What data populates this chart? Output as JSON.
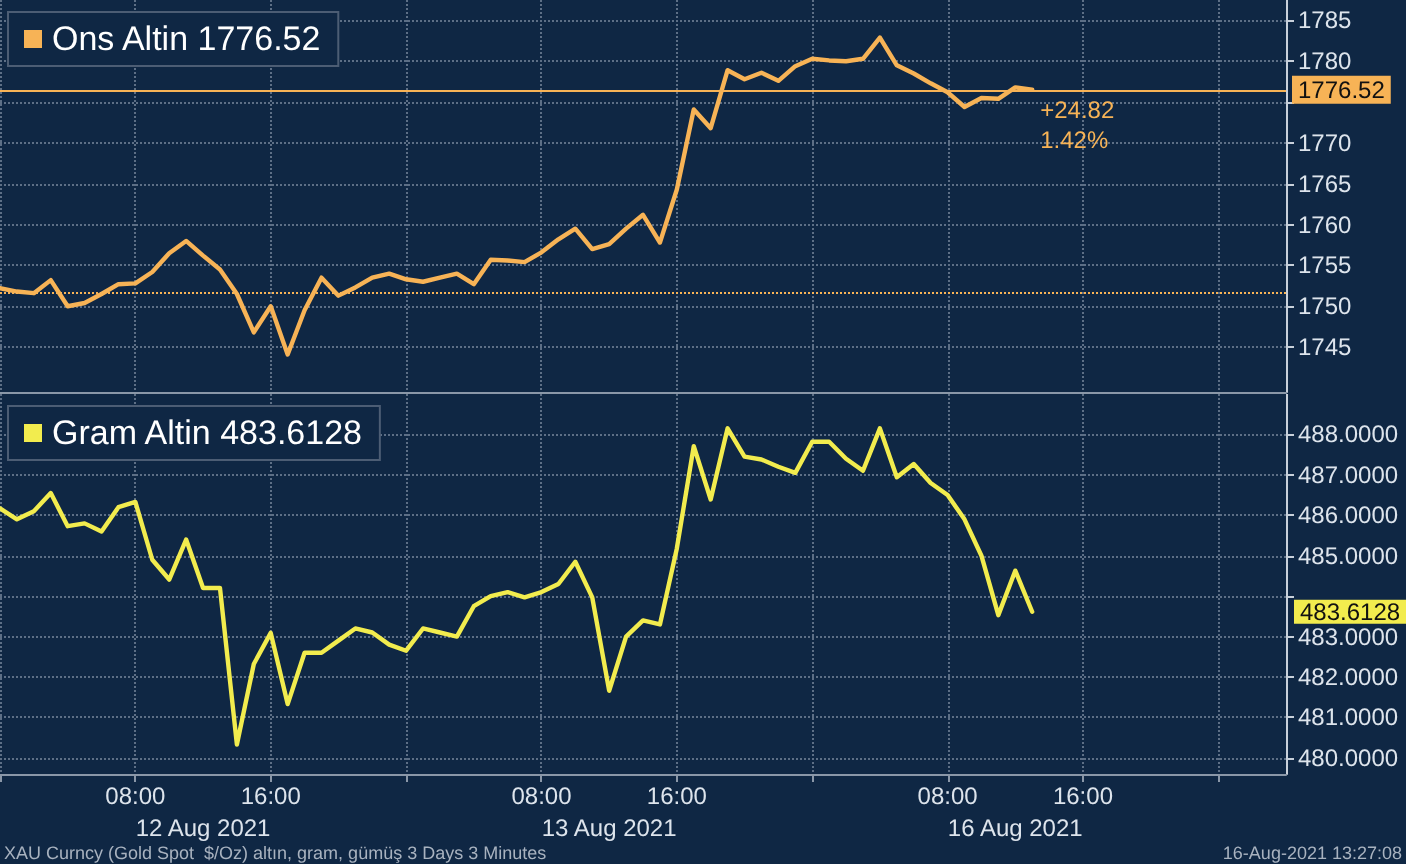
{
  "chart_data": [
    {
      "type": "line",
      "legend": "top left",
      "grid": true,
      "tick_labels": "y",
      "categories": [
        null,
        null,
        null,
        null,
        null,
        null,
        null,
        null,
        null,
        null,
        null,
        null,
        null,
        null,
        null,
        null,
        null,
        null,
        null,
        null,
        null,
        null,
        null,
        null,
        null,
        null,
        null,
        null,
        null,
        null,
        null,
        null,
        null,
        null,
        null,
        null,
        null,
        null,
        null,
        null,
        null,
        null,
        null,
        null,
        null,
        null,
        null,
        null,
        null,
        null,
        null,
        null,
        null,
        null,
        null,
        null,
        null,
        null,
        null,
        null,
        null,
        null,
        null,
        null,
        null,
        null,
        null,
        null,
        null,
        null,
        null,
        null,
        null,
        null,
        null,
        null,
        null
      ],
      "ylim": [
        1739.5,
        1787.5
      ],
      "yticks": [
        1745,
        1750,
        1755,
        1760,
        1765,
        1770,
        {
          "value": 1775,
          "label": null
        },
        1780,
        1785
      ],
      "series": [
        {
          "name": "Ons Altin 1776.52",
          "color": "#f7b356",
          "values": [
            1752.2,
            1751.8,
            1751.6,
            1753.2,
            1750,
            1750.4,
            1751.5,
            1752.7,
            1752.8,
            1754.2,
            1756.5,
            1758,
            1756.2,
            1754.5,
            1751.5,
            1746.8,
            1750,
            1744.1,
            1749.5,
            1753.5,
            1751.3,
            1752.3,
            1753.5,
            1754,
            1753.3,
            1753,
            1753.5,
            1754,
            1752.7,
            1755.7,
            1755.6,
            1755.4,
            1756.6,
            1758.2,
            1759.5,
            1757,
            1757.6,
            1759.5,
            1761.2,
            1757.8,
            1764.3,
            1774.1,
            1771.8,
            1778.9,
            1777.8,
            1778.6,
            1777.6,
            1779.4,
            1780.3,
            1780.1,
            1780,
            1780.3,
            1782.9,
            1779.5,
            1778.5,
            1777.3,
            1776.2,
            1774.4,
            1775.5,
            1775.4,
            1776.8,
            1776.52,
            null,
            null,
            null,
            null,
            null,
            null,
            null,
            null,
            null,
            null,
            null,
            null,
            null,
            null,
            null
          ]
        }
      ],
      "ref_lines": [
        {
          "axis": "y",
          "value": 1751.7,
          "line_style": "dotted",
          "color": "#f7b356"
        },
        {
          "axis": "y",
          "value": 1776.52,
          "label": "1776.52",
          "color": "#f7b356"
        }
      ],
      "annotations": [
        "+24.82",
        "1.42%"
      ]
    },
    {
      "type": "line",
      "legend": "top left",
      "grid": true,
      "categories": [
        null,
        null,
        null,
        null,
        null,
        null,
        null,
        null,
        "08:00",
        null,
        null,
        null,
        "12 Aug 2021",
        null,
        null,
        null,
        "16:00",
        null,
        null,
        null,
        null,
        null,
        null,
        null,
        null,
        null,
        null,
        null,
        null,
        null,
        null,
        null,
        "08:00",
        null,
        null,
        null,
        "13 Aug 2021",
        null,
        null,
        null,
        "16:00",
        null,
        null,
        null,
        null,
        null,
        null,
        null,
        null,
        null,
        null,
        null,
        null,
        null,
        null,
        null,
        "08:00",
        null,
        null,
        null,
        "16 Aug 2021",
        null,
        null,
        null,
        "16:00",
        null,
        null,
        null,
        null,
        null,
        null,
        null,
        null,
        null,
        null,
        null,
        null
      ],
      "ylim": [
        479.6,
        489
      ],
      "yticks": [
        {
          "value": 480,
          "label": "480.0000"
        },
        {
          "value": 481,
          "label": "481.0000"
        },
        {
          "value": 482,
          "label": "482.0000"
        },
        {
          "value": 483,
          "label": "483.0000"
        },
        {
          "value": 484,
          "label": null
        },
        {
          "value": 485,
          "label": "485.0000"
        },
        {
          "value": 486,
          "label": "486.0000"
        },
        {
          "value": 487,
          "label": "487.0000"
        },
        {
          "value": 488,
          "label": "488.0000"
        }
      ],
      "series": [
        {
          "name": "Gram Altin 483.6128",
          "color": "#f2ec4e",
          "values": [
            486.17,
            485.9,
            486.1,
            486.55,
            485.73,
            485.8,
            485.6,
            486.2,
            486.33,
            484.9,
            484.41,
            485.4,
            484.2,
            484.2,
            480.33,
            482.32,
            483.09,
            481.33,
            482.6,
            482.6,
            482.9,
            483.2,
            483.1,
            482.8,
            482.65,
            483.2,
            483.1,
            483,
            483.75,
            484,
            484.1,
            483.97,
            484.1,
            484.3,
            484.85,
            483.97,
            481.66,
            483,
            483.4,
            483.3,
            485.18,
            487.71,
            486.39,
            488.15,
            487.45,
            487.38,
            487.2,
            487.05,
            487.82,
            487.82,
            487.4,
            487.1,
            488.15,
            486.94,
            487.27,
            486.8,
            486.5,
            485.9,
            485,
            483.53,
            484.63,
            483.6128,
            null,
            null,
            null,
            null,
            null,
            null,
            null,
            null,
            null,
            null,
            null,
            null,
            null,
            null,
            null
          ]
        }
      ],
      "annotations": [
        "483.6128",
        "XAU Curncy (Gold Spot  $/Oz) altın, gram, gümüş 3 Days 3 Minutes",
        "16-Aug-2021 13:27:08"
      ]
    }
  ]
}
